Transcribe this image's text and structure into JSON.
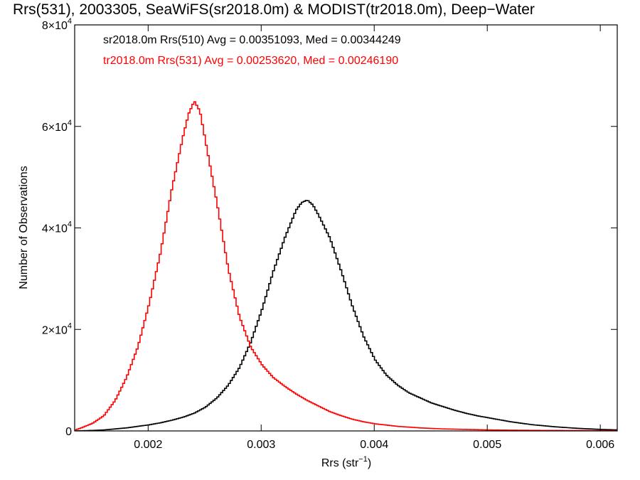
{
  "chart_data": {
    "type": "line",
    "title": "Rrs(531), 2003305, SeaWiFS(sr2018.0m) & MODIST(tr2018.0m), Deep−Water",
    "xlabel": "Rrs (str",
    "xlabel_sup": "−1",
    "xlabel_close": ")",
    "ylabel": "Number of Observations",
    "xlim": [
      0.00135,
      0.00615
    ],
    "ylim": [
      0,
      80000
    ],
    "grid": false,
    "x_ticks": [
      {
        "value": 0.002,
        "label": "0.002"
      },
      {
        "value": 0.003,
        "label": "0.003"
      },
      {
        "value": 0.004,
        "label": "0.004"
      },
      {
        "value": 0.005,
        "label": "0.005"
      },
      {
        "value": 0.006,
        "label": "0.006"
      }
    ],
    "y_ticks": [
      {
        "value": 0,
        "mant": "0",
        "sup": ""
      },
      {
        "value": 20000,
        "mant": "2×10",
        "sup": "4"
      },
      {
        "value": 40000,
        "mant": "4×10",
        "sup": "4"
      },
      {
        "value": 60000,
        "mant": "6×10",
        "sup": "4"
      },
      {
        "value": 80000,
        "mant": "8×10",
        "sup": "4"
      }
    ],
    "annotations": [
      {
        "text": "sr2018.0m Rrs(510) Avg = 0.00351093, Med = 0.00344249",
        "color": "#000000"
      },
      {
        "text": "tr2018.0m Rrs(531) Avg = 0.00253620, Med = 0.00246190",
        "color": "#ff0000"
      }
    ],
    "series": [
      {
        "color": "#000000",
        "step": true,
        "x": [
          0.00135,
          0.0015,
          0.0016,
          0.0017,
          0.0018,
          0.0019,
          0.002,
          0.0021,
          0.0022,
          0.0023,
          0.0024,
          0.0025,
          0.0026,
          0.0027,
          0.0028,
          0.0029,
          0.003,
          0.0031,
          0.0032,
          0.0033,
          0.00335,
          0.0034,
          0.00345,
          0.0035,
          0.0036,
          0.0037,
          0.0038,
          0.0039,
          0.004,
          0.0041,
          0.0042,
          0.0043,
          0.0044,
          0.0045,
          0.0046,
          0.0047,
          0.0048,
          0.0049,
          0.005,
          0.0052,
          0.0054,
          0.0056,
          0.0058,
          0.006,
          0.00615
        ],
        "y": [
          0,
          100,
          200,
          400,
          600,
          900,
          1200,
          1600,
          2100,
          2700,
          3500,
          4700,
          6500,
          9000,
          12500,
          17500,
          24000,
          31500,
          38000,
          43500,
          45000,
          45500,
          44500,
          42500,
          38000,
          31500,
          24500,
          18500,
          14000,
          11000,
          9000,
          7500,
          6500,
          5500,
          4800,
          4100,
          3500,
          3000,
          2600,
          1800,
          1200,
          800,
          500,
          300,
          200
        ]
      },
      {
        "color": "#ff0000",
        "step": true,
        "x": [
          0.00135,
          0.0014,
          0.0015,
          0.0016,
          0.0017,
          0.0018,
          0.0019,
          0.002,
          0.0021,
          0.0022,
          0.0023,
          0.00235,
          0.0024,
          0.00245,
          0.0025,
          0.0026,
          0.0027,
          0.0028,
          0.0029,
          0.003,
          0.0031,
          0.0032,
          0.0033,
          0.0034,
          0.0035,
          0.0036,
          0.0037,
          0.0038,
          0.0039,
          0.004,
          0.0042,
          0.0044,
          0.0046,
          0.0048,
          0.005,
          0.0052,
          0.0055,
          0.0058,
          0.00615
        ],
        "y": [
          200,
          600,
          1500,
          3000,
          6000,
          10500,
          16500,
          25000,
          35000,
          47500,
          58000,
          62500,
          65000,
          63000,
          57000,
          45000,
          32000,
          22500,
          16500,
          13000,
          10500,
          8800,
          7300,
          6000,
          4900,
          3800,
          3000,
          2300,
          1800,
          1400,
          900,
          600,
          400,
          300,
          200,
          150,
          100,
          80,
          50
        ]
      }
    ]
  }
}
